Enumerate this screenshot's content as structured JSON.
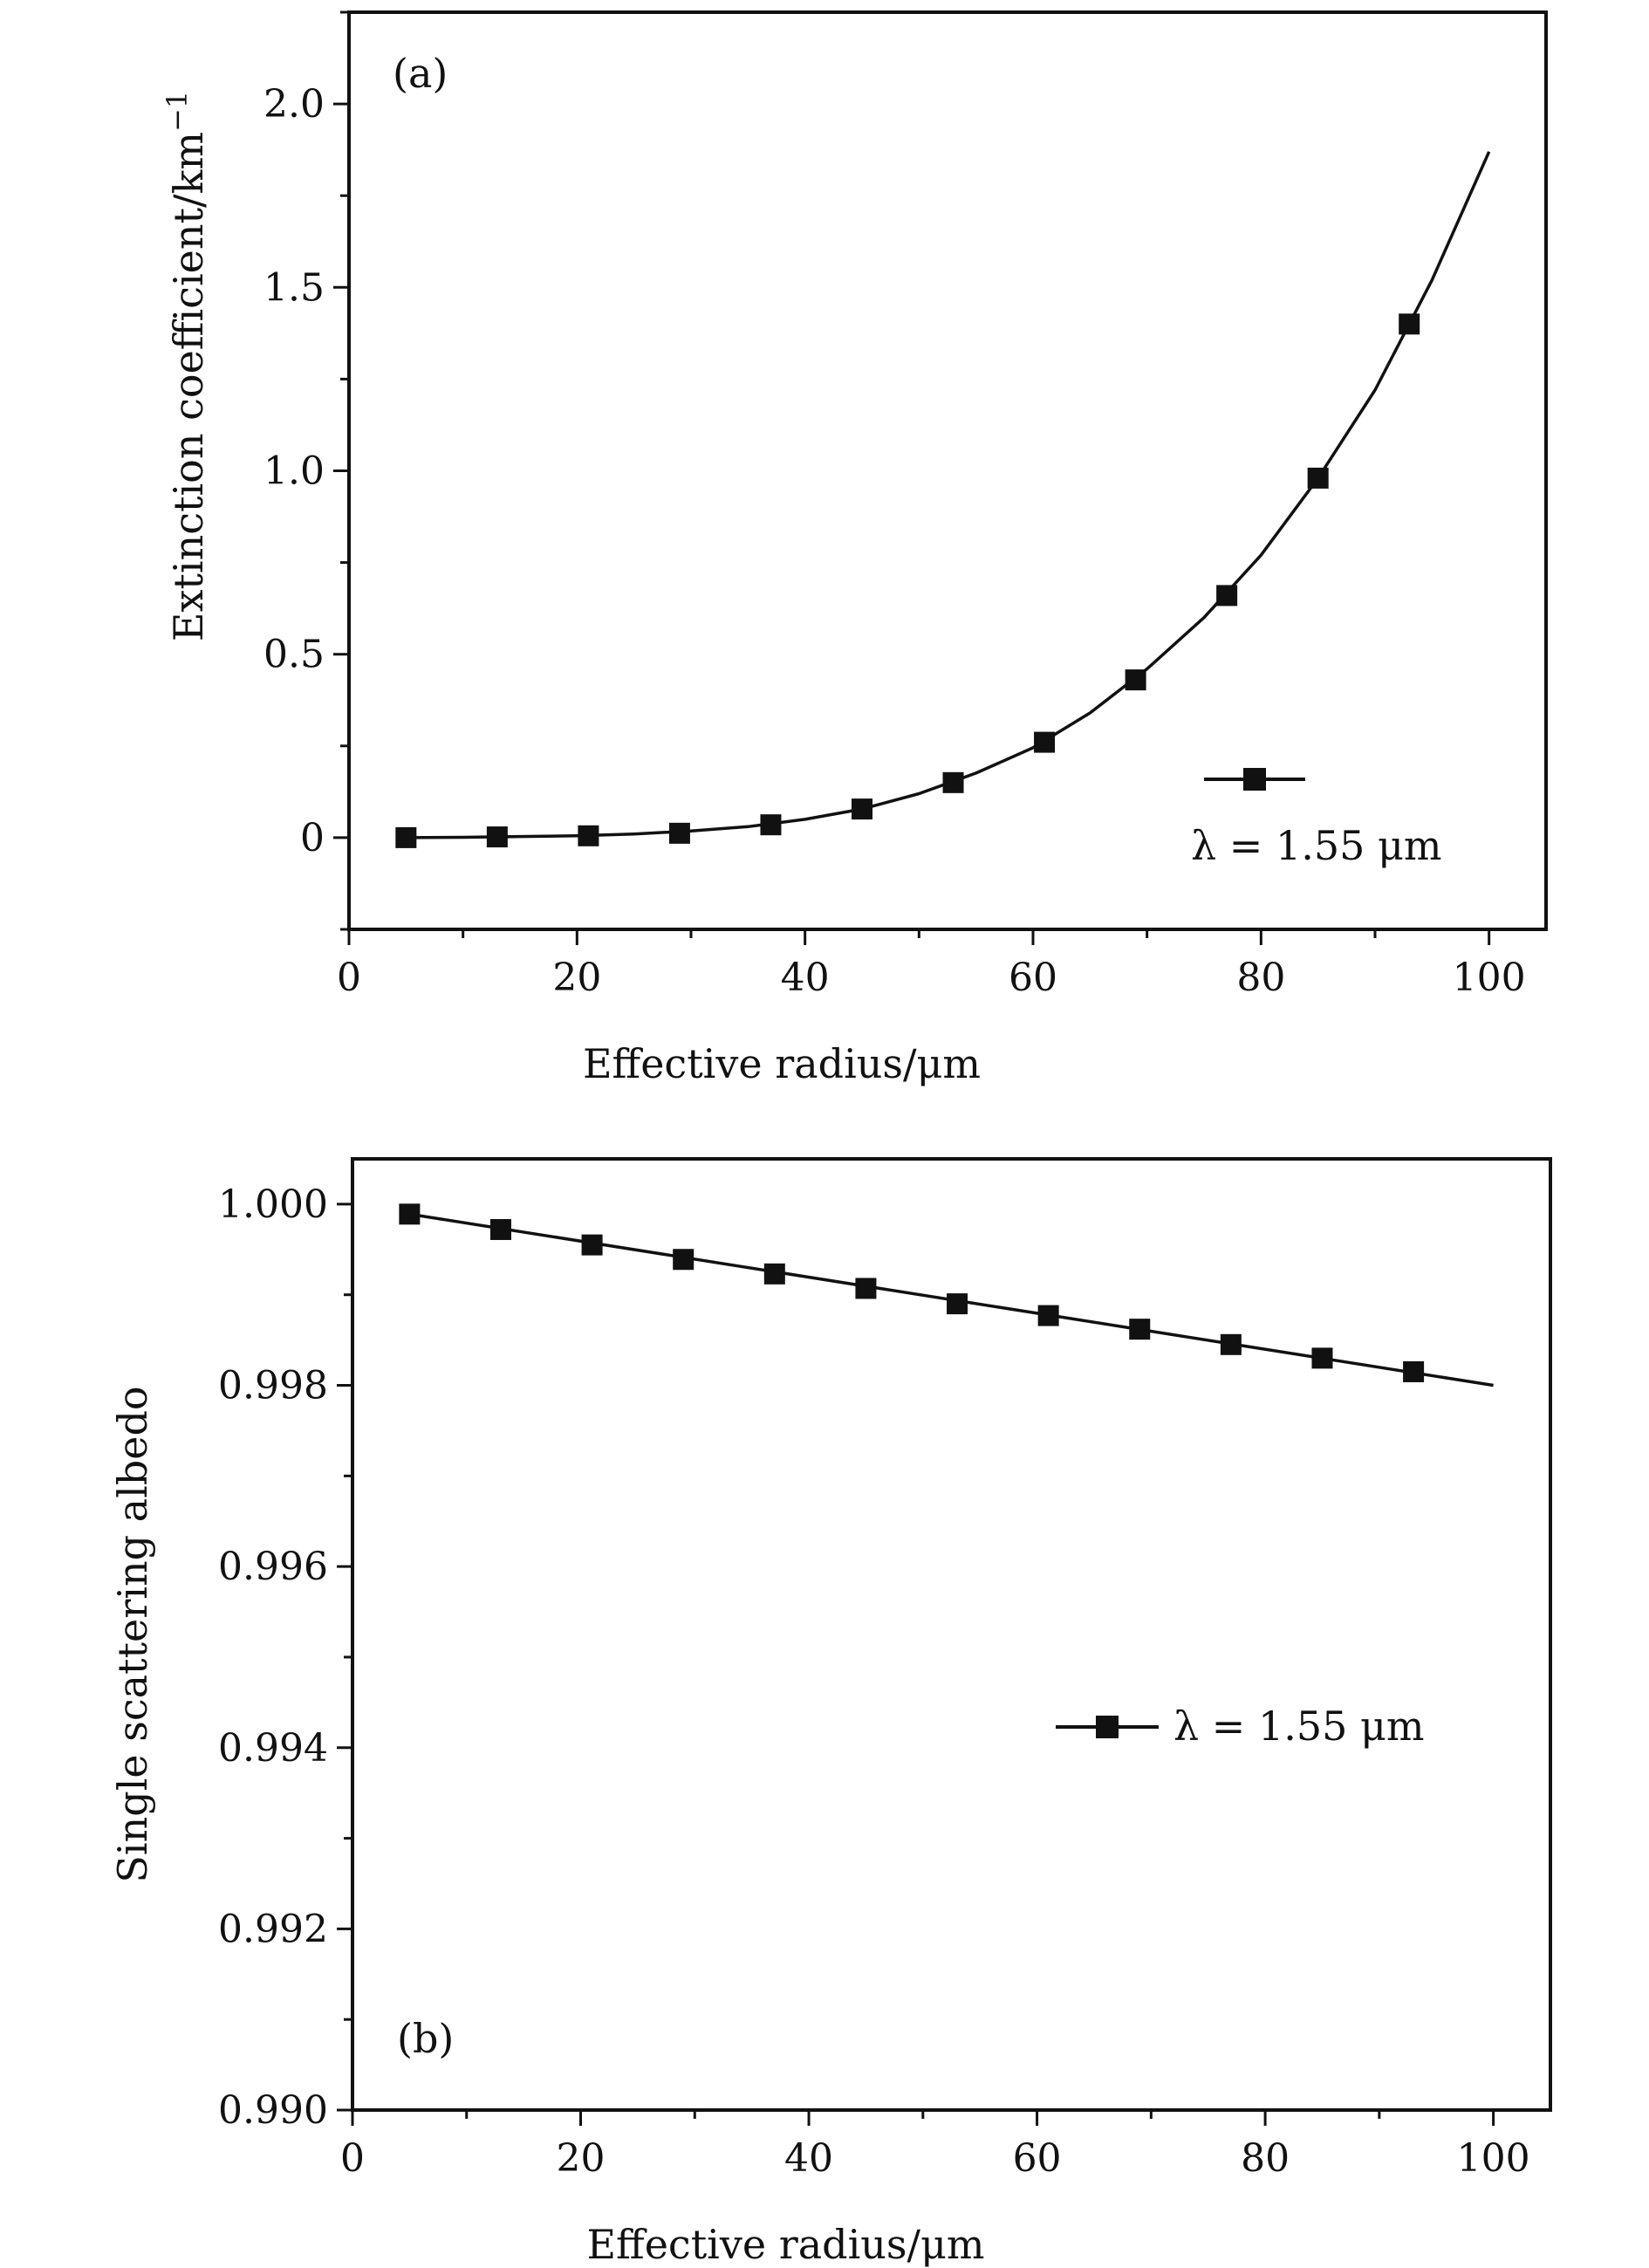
{
  "chart_data": [
    {
      "type": "line",
      "panel_label": "(a)",
      "title": "",
      "xlabel": "Effective radius/μm",
      "ylabel": "Extinction coefficient/km",
      "ylabel_superscript": "−1",
      "xlim": [
        0,
        105
      ],
      "ylim": [
        -0.25,
        2.25
      ],
      "x_ticks": [
        0,
        20,
        40,
        60,
        80,
        100
      ],
      "x_tick_labels": [
        "0",
        "20",
        "40",
        "60",
        "80",
        "100"
      ],
      "y_ticks": [
        0,
        0.5,
        1.0,
        1.5,
        2.0
      ],
      "y_tick_labels": [
        "0",
        "0.5",
        "1.0",
        "1.5",
        "2.0"
      ],
      "grid": false,
      "legend_position": "lower-right",
      "series": [
        {
          "name": "λ = 1.55 μm",
          "marker": "square",
          "color": "#111111",
          "x": [
            5,
            13,
            21,
            29,
            37,
            45,
            53,
            61,
            69,
            77,
            85,
            93
          ],
          "y": [
            0.0,
            0.002,
            0.005,
            0.012,
            0.035,
            0.078,
            0.15,
            0.26,
            0.43,
            0.66,
            0.98,
            1.4
          ]
        }
      ],
      "curve": {
        "x": [
          5,
          10,
          15,
          20,
          25,
          30,
          35,
          40,
          45,
          50,
          55,
          60,
          65,
          70,
          75,
          80,
          85,
          90,
          95,
          100
        ],
        "y": [
          0.0,
          0.001,
          0.003,
          0.005,
          0.01,
          0.018,
          0.03,
          0.05,
          0.078,
          0.12,
          0.176,
          0.245,
          0.34,
          0.46,
          0.6,
          0.77,
          0.98,
          1.22,
          1.52,
          1.87
        ]
      }
    },
    {
      "type": "line",
      "panel_label": "(b)",
      "title": "",
      "xlabel": "Effective radius/μm",
      "ylabel": "Single scattering albedo",
      "xlim": [
        0,
        105
      ],
      "ylim": [
        0.99,
        1.0005
      ],
      "x_ticks": [
        0,
        20,
        40,
        60,
        80,
        100
      ],
      "x_tick_labels": [
        "0",
        "20",
        "40",
        "60",
        "80",
        "100"
      ],
      "y_ticks": [
        0.99,
        0.992,
        0.994,
        0.996,
        0.998,
        1.0
      ],
      "y_tick_labels": [
        "0.990",
        "0.992",
        "0.994",
        "0.996",
        "0.998",
        "1.000"
      ],
      "grid": false,
      "legend_position": "center-right",
      "series": [
        {
          "name": "λ = 1.55 μm",
          "marker": "square",
          "color": "#111111",
          "x": [
            5,
            13,
            21,
            29,
            37,
            45,
            53,
            61,
            69,
            77,
            85,
            93
          ],
          "y": [
            0.99989,
            0.99972,
            0.99955,
            0.99939,
            0.99923,
            0.99907,
            0.9989,
            0.99877,
            0.99862,
            0.99845,
            0.9983,
            0.99815
          ]
        }
      ],
      "curve": {
        "x": [
          5,
          100
        ],
        "y": [
          0.99989,
          0.998
        ]
      }
    }
  ]
}
